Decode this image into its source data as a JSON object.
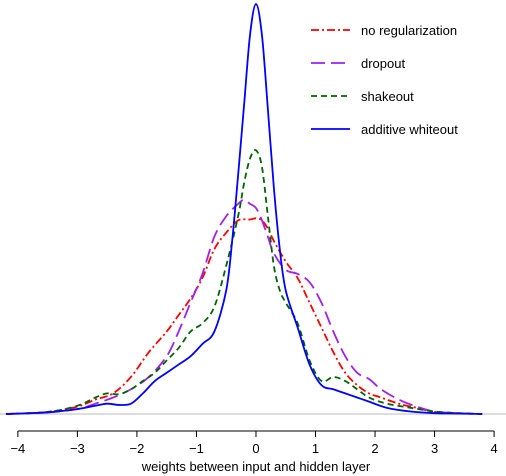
{
  "chart_data": {
    "type": "line",
    "title": "",
    "xlabel": "weights between input and hidden layer",
    "ylabel": "",
    "xlim": [
      -4.3,
      4.2
    ],
    "ylim": [
      0,
      1.0
    ],
    "x_ticks": [
      -4,
      -3,
      -2,
      -1,
      0,
      1,
      2,
      3,
      4
    ],
    "x_tick_labels": [
      "−4",
      "−3",
      "−2",
      "−1",
      "0",
      "1",
      "2",
      "3",
      "4"
    ],
    "grid": false,
    "legend_position": "top-right",
    "series": [
      {
        "name": "no regularization",
        "color": "#ff0000",
        "dash": "dash-dot",
        "x": [
          -4.2,
          -3.5,
          -3.0,
          -2.7,
          -2.4,
          -2.1,
          -1.8,
          -1.5,
          -1.3,
          -1.1,
          -0.9,
          -0.7,
          -0.5,
          -0.3,
          -0.1,
          0.0,
          0.1,
          0.2,
          0.3,
          0.5,
          0.7,
          0.9,
          1.1,
          1.3,
          1.5,
          1.7,
          1.9,
          2.1,
          2.4,
          2.7,
          3.0,
          3.4,
          3.8
        ],
        "y": [
          0.0,
          0.005,
          0.018,
          0.035,
          0.05,
          0.09,
          0.15,
          0.2,
          0.24,
          0.28,
          0.33,
          0.4,
          0.44,
          0.47,
          0.472,
          0.475,
          0.47,
          0.45,
          0.42,
          0.37,
          0.33,
          0.27,
          0.21,
          0.15,
          0.1,
          0.07,
          0.05,
          0.04,
          0.025,
          0.015,
          0.005,
          0.002,
          0.0
        ]
      },
      {
        "name": "dropout",
        "color": "#a020f0",
        "dash": "long-dash",
        "x": [
          -4.2,
          -3.5,
          -3.0,
          -2.7,
          -2.4,
          -2.1,
          -1.8,
          -1.5,
          -1.3,
          -1.1,
          -0.9,
          -0.7,
          -0.5,
          -0.3,
          -0.2,
          -0.1,
          0.0,
          0.1,
          0.2,
          0.3,
          0.5,
          0.7,
          0.9,
          1.1,
          1.3,
          1.5,
          1.7,
          1.9,
          2.1,
          2.4,
          2.7,
          3.0,
          3.4,
          3.8
        ],
        "y": [
          0.0,
          0.004,
          0.012,
          0.025,
          0.04,
          0.06,
          0.09,
          0.14,
          0.2,
          0.27,
          0.34,
          0.43,
          0.48,
          0.51,
          0.52,
          0.51,
          0.5,
          0.47,
          0.43,
          0.39,
          0.35,
          0.34,
          0.32,
          0.27,
          0.2,
          0.14,
          0.1,
          0.085,
          0.06,
          0.035,
          0.018,
          0.006,
          0.002,
          0.0
        ]
      },
      {
        "name": "shakeout",
        "color": "#006400",
        "dash": "short-dash",
        "x": [
          -4.2,
          -3.5,
          -3.0,
          -2.7,
          -2.5,
          -2.3,
          -2.1,
          -1.9,
          -1.7,
          -1.5,
          -1.3,
          -1.1,
          -0.9,
          -0.7,
          -0.5,
          -0.3,
          -0.2,
          -0.1,
          0.0,
          0.1,
          0.2,
          0.3,
          0.4,
          0.5,
          0.7,
          0.9,
          1.1,
          1.3,
          1.5,
          1.7,
          1.9,
          2.2,
          2.6,
          3.0,
          3.4,
          3.8
        ],
        "y": [
          0.0,
          0.005,
          0.02,
          0.04,
          0.05,
          0.048,
          0.06,
          0.08,
          0.1,
          0.13,
          0.16,
          0.2,
          0.22,
          0.26,
          0.36,
          0.48,
          0.56,
          0.62,
          0.64,
          0.6,
          0.48,
          0.36,
          0.3,
          0.27,
          0.22,
          0.13,
          0.08,
          0.09,
          0.08,
          0.06,
          0.04,
          0.025,
          0.015,
          0.006,
          0.002,
          0.0
        ]
      },
      {
        "name": "additive whiteout",
        "color": "#0000ff",
        "dash": "solid",
        "x": [
          -4.2,
          -3.5,
          -3.0,
          -2.7,
          -2.5,
          -2.3,
          -2.1,
          -1.9,
          -1.7,
          -1.5,
          -1.3,
          -1.1,
          -0.9,
          -0.7,
          -0.5,
          -0.4,
          -0.3,
          -0.2,
          -0.1,
          0.0,
          0.1,
          0.2,
          0.3,
          0.4,
          0.5,
          0.7,
          0.9,
          1.1,
          1.3,
          1.5,
          1.7,
          1.9,
          2.2,
          2.6,
          3.0,
          3.4,
          3.8
        ],
        "y": [
          0.0,
          0.004,
          0.012,
          0.02,
          0.025,
          0.022,
          0.025,
          0.05,
          0.08,
          0.1,
          0.12,
          0.14,
          0.17,
          0.2,
          0.3,
          0.42,
          0.58,
          0.75,
          0.92,
          0.995,
          0.92,
          0.74,
          0.55,
          0.4,
          0.3,
          0.21,
          0.12,
          0.07,
          0.06,
          0.05,
          0.04,
          0.03,
          0.015,
          0.006,
          0.002,
          0.001,
          0.0
        ]
      }
    ]
  }
}
